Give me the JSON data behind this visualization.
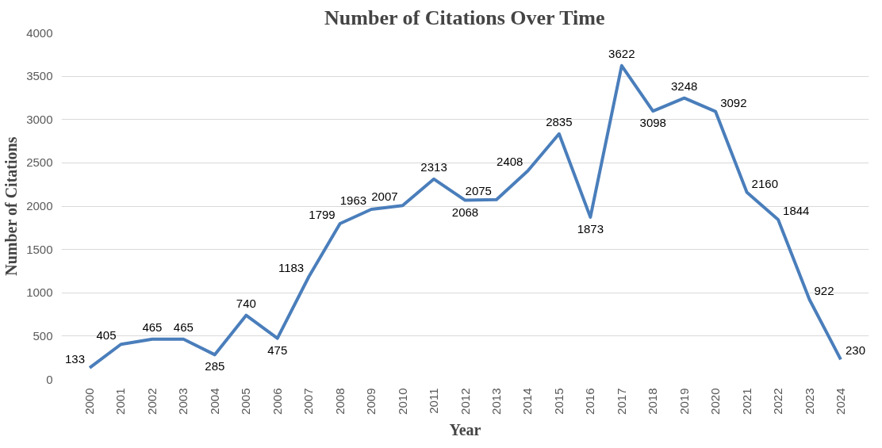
{
  "chart_data": {
    "type": "line",
    "title": "Number of Citations Over Time",
    "xlabel": "Year",
    "ylabel": "Number of Citations",
    "categories": [
      "2000",
      "2001",
      "2002",
      "2003",
      "2004",
      "2005",
      "2006",
      "2007",
      "2008",
      "2009",
      "2010",
      "2011",
      "2012",
      "2013",
      "2014",
      "2015",
      "2016",
      "2017",
      "2018",
      "2019",
      "2020",
      "2021",
      "2022",
      "2023",
      "2024"
    ],
    "series": [
      {
        "color": "#4a7ebb",
        "values": [
          133,
          405,
          465,
          465,
          285,
          740,
          475,
          1183,
          1799,
          1963,
          2007,
          2313,
          2068,
          2075,
          2408,
          2835,
          1873,
          3622,
          3098,
          3248,
          3092,
          2160,
          1844,
          922,
          230
        ]
      }
    ],
    "ylim": [
      0,
      4000
    ],
    "yticks": [
      0,
      500,
      1000,
      1500,
      2000,
      2500,
      3000,
      3500,
      4000
    ],
    "grid": "y",
    "data_labels": true,
    "marker": "none",
    "line_style": "solid"
  }
}
